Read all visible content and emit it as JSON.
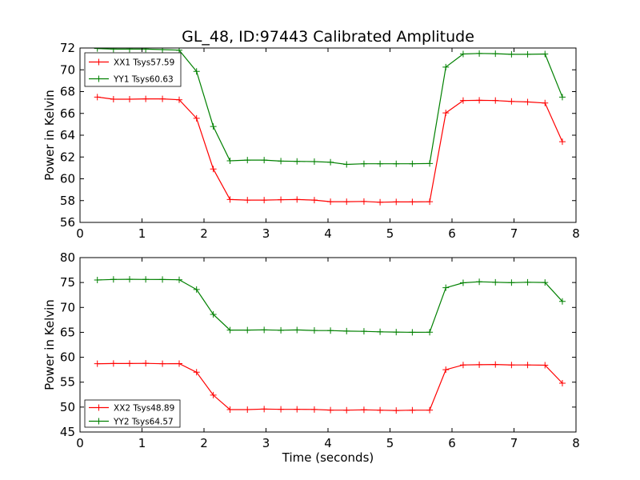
{
  "figure": {
    "title": "GL_48, ID:97443 Calibrated Amplitude"
  },
  "chart_data": [
    {
      "type": "line",
      "title": "GL_48, ID:97443 Calibrated Amplitude",
      "xlabel": "",
      "ylabel": "Power in Kelvin",
      "xlim": [
        0,
        8
      ],
      "ylim": [
        56,
        72
      ],
      "xticks": [
        "0",
        "1",
        "2",
        "3",
        "4",
        "5",
        "6",
        "7",
        "8"
      ],
      "yticks": [
        "56",
        "58",
        "60",
        "62",
        "64",
        "66",
        "68",
        "70",
        "72"
      ],
      "grid": false,
      "legend_position": "top-left",
      "marker": "+",
      "series": [
        {
          "name": "XX1 Tsys57.59",
          "color": "#ff0000",
          "points": [
            [
              0.28,
              67.5
            ],
            [
              0.54,
              67.3
            ],
            [
              0.8,
              67.3
            ],
            [
              1.06,
              67.33
            ],
            [
              1.33,
              67.33
            ],
            [
              1.6,
              67.25
            ],
            [
              1.88,
              65.55
            ],
            [
              2.15,
              60.9
            ],
            [
              2.42,
              58.1
            ],
            [
              2.7,
              58.05
            ],
            [
              2.97,
              58.05
            ],
            [
              3.24,
              58.08
            ],
            [
              3.5,
              58.1
            ],
            [
              3.78,
              58.05
            ],
            [
              4.04,
              57.9
            ],
            [
              4.3,
              57.9
            ],
            [
              4.58,
              57.92
            ],
            [
              4.84,
              57.85
            ],
            [
              5.1,
              57.88
            ],
            [
              5.36,
              57.88
            ],
            [
              5.64,
              57.9
            ],
            [
              5.9,
              66.05
            ],
            [
              6.18,
              67.18
            ],
            [
              6.44,
              67.2
            ],
            [
              6.7,
              67.18
            ],
            [
              6.96,
              67.1
            ],
            [
              7.22,
              67.05
            ],
            [
              7.5,
              66.95
            ],
            [
              7.78,
              63.4
            ]
          ]
        },
        {
          "name": "YY1 Tsys60.63",
          "color": "#008000",
          "points": [
            [
              0.28,
              71.95
            ],
            [
              0.54,
              71.9
            ],
            [
              0.8,
              71.9
            ],
            [
              1.06,
              71.9
            ],
            [
              1.33,
              71.85
            ],
            [
              1.6,
              71.8
            ],
            [
              1.88,
              69.85
            ],
            [
              2.15,
              64.8
            ],
            [
              2.42,
              61.65
            ],
            [
              2.7,
              61.72
            ],
            [
              2.97,
              61.72
            ],
            [
              3.24,
              61.62
            ],
            [
              3.5,
              61.6
            ],
            [
              3.78,
              61.58
            ],
            [
              4.04,
              61.52
            ],
            [
              4.3,
              61.32
            ],
            [
              4.58,
              61.38
            ],
            [
              4.84,
              61.38
            ],
            [
              5.1,
              61.38
            ],
            [
              5.36,
              61.38
            ],
            [
              5.64,
              61.4
            ],
            [
              5.9,
              70.25
            ],
            [
              6.18,
              71.45
            ],
            [
              6.44,
              71.5
            ],
            [
              6.7,
              71.48
            ],
            [
              6.96,
              71.42
            ],
            [
              7.22,
              71.42
            ],
            [
              7.5,
              71.45
            ],
            [
              7.78,
              67.5
            ]
          ]
        }
      ]
    },
    {
      "type": "line",
      "title": "",
      "xlabel": "Time (seconds)",
      "ylabel": "Power in Kelvin",
      "xlim": [
        0,
        8
      ],
      "ylim": [
        45,
        80
      ],
      "xticks": [
        "0",
        "1",
        "2",
        "3",
        "4",
        "5",
        "6",
        "7",
        "8"
      ],
      "yticks": [
        "45",
        "50",
        "55",
        "60",
        "65",
        "70",
        "75",
        "80"
      ],
      "grid": false,
      "legend_position": "bottom-left",
      "marker": "+",
      "series": [
        {
          "name": "XX2 Tsys48.89",
          "color": "#ff0000",
          "points": [
            [
              0.28,
              58.7
            ],
            [
              0.54,
              58.75
            ],
            [
              0.8,
              58.75
            ],
            [
              1.06,
              58.78
            ],
            [
              1.33,
              58.7
            ],
            [
              1.6,
              58.72
            ],
            [
              1.88,
              57.0
            ],
            [
              2.15,
              52.4
            ],
            [
              2.42,
              49.5
            ],
            [
              2.7,
              49.5
            ],
            [
              2.97,
              49.6
            ],
            [
              3.24,
              49.55
            ],
            [
              3.5,
              49.55
            ],
            [
              3.78,
              49.52
            ],
            [
              4.04,
              49.4
            ],
            [
              4.3,
              49.38
            ],
            [
              4.58,
              49.45
            ],
            [
              4.84,
              49.38
            ],
            [
              5.1,
              49.32
            ],
            [
              5.36,
              49.38
            ],
            [
              5.64,
              49.4
            ],
            [
              5.9,
              57.5
            ],
            [
              6.18,
              58.45
            ],
            [
              6.44,
              58.5
            ],
            [
              6.7,
              58.55
            ],
            [
              6.96,
              58.45
            ],
            [
              7.22,
              58.45
            ],
            [
              7.5,
              58.4
            ],
            [
              7.78,
              54.8
            ]
          ]
        },
        {
          "name": "YY2 Tsys64.57",
          "color": "#008000",
          "points": [
            [
              0.28,
              75.5
            ],
            [
              0.54,
              75.62
            ],
            [
              0.8,
              75.65
            ],
            [
              1.06,
              75.62
            ],
            [
              1.33,
              75.6
            ],
            [
              1.6,
              75.55
            ],
            [
              1.88,
              73.6
            ],
            [
              2.15,
              68.6
            ],
            [
              2.42,
              65.45
            ],
            [
              2.7,
              65.45
            ],
            [
              2.97,
              65.5
            ],
            [
              3.24,
              65.42
            ],
            [
              3.5,
              65.48
            ],
            [
              3.78,
              65.38
            ],
            [
              4.04,
              65.35
            ],
            [
              4.3,
              65.25
            ],
            [
              4.58,
              65.2
            ],
            [
              4.84,
              65.1
            ],
            [
              5.1,
              65.05
            ],
            [
              5.36,
              65.0
            ],
            [
              5.64,
              65.02
            ],
            [
              5.9,
              73.95
            ],
            [
              6.18,
              74.95
            ],
            [
              6.44,
              75.15
            ],
            [
              6.7,
              75.05
            ],
            [
              6.96,
              74.98
            ],
            [
              7.22,
              75.05
            ],
            [
              7.5,
              75.0
            ],
            [
              7.78,
              71.2
            ]
          ]
        }
      ]
    }
  ]
}
